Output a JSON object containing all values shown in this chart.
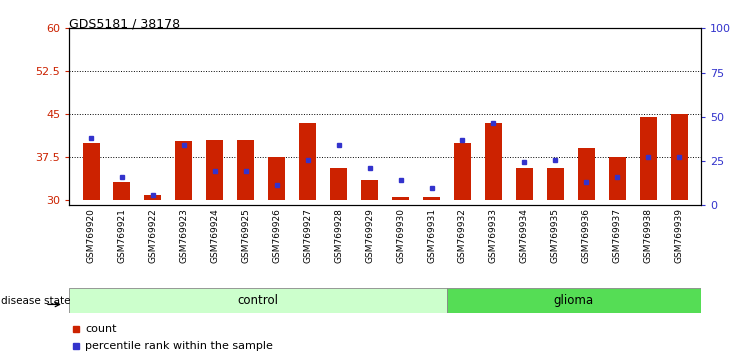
{
  "title": "GDS5181 / 38178",
  "samples": [
    "GSM769920",
    "GSM769921",
    "GSM769922",
    "GSM769923",
    "GSM769924",
    "GSM769925",
    "GSM769926",
    "GSM769927",
    "GSM769928",
    "GSM769929",
    "GSM769930",
    "GSM769931",
    "GSM769932",
    "GSM769933",
    "GSM769934",
    "GSM769935",
    "GSM769936",
    "GSM769937",
    "GSM769938",
    "GSM769939"
  ],
  "red_bar_tops": [
    40.0,
    33.0,
    30.8,
    40.2,
    40.5,
    40.5,
    37.5,
    43.5,
    35.5,
    33.5,
    30.5,
    30.5,
    40.0,
    43.5,
    35.5,
    35.5,
    39.0,
    37.5,
    44.5,
    45.0
  ],
  "blue_marker_vals": [
    40.8,
    34.0,
    30.8,
    39.5,
    35.0,
    35.0,
    32.5,
    37.0,
    39.5,
    35.5,
    33.5,
    32.0,
    40.5,
    43.5,
    36.5,
    37.0,
    33.0,
    34.0,
    37.5,
    37.5
  ],
  "control_count": 12,
  "glioma_count": 8,
  "ylim_left": [
    29,
    60
  ],
  "ylim_right": [
    0,
    100
  ],
  "yticks_left": [
    30,
    37.5,
    45,
    52.5,
    60
  ],
  "yticks_right": [
    0,
    25,
    50,
    75,
    100
  ],
  "hlines": [
    37.5,
    45,
    52.5
  ],
  "bar_color": "#cc2200",
  "blue_color": "#3333cc",
  "control_color": "#ccffcc",
  "glioma_color": "#55dd55",
  "bar_bottom": 30,
  "bar_width": 0.55,
  "legend_count_label": "count",
  "legend_pct_label": "percentile rank within the sample",
  "xlabel_disease": "disease state",
  "group_control": "control",
  "group_glioma": "glioma"
}
